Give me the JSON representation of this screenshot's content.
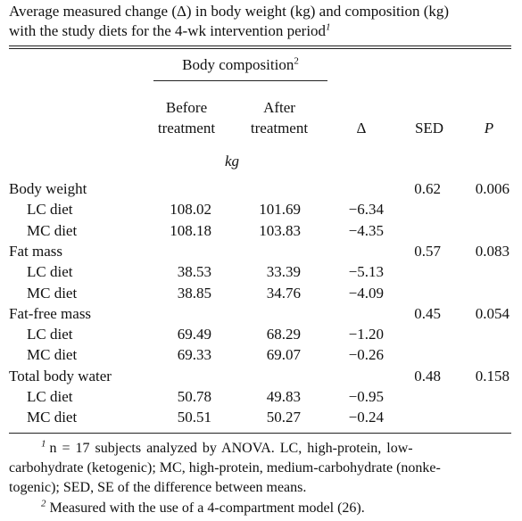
{
  "caption": {
    "line1": "Average measured change (Δ) in body weight (kg) and composition (kg)",
    "line2": "with the study diets for the 4-wk intervention period",
    "line2_sup": "1"
  },
  "header": {
    "group_label": "Body composition",
    "group_sup": "2",
    "before_line1": "Before",
    "before_line2": "treatment",
    "after_line1": "After",
    "after_line2": "treatment",
    "delta": "Δ",
    "sed": "SED",
    "p": "P",
    "unit": "kg"
  },
  "rows": [
    {
      "label": "Body weight",
      "sed": "0.62",
      "p": "0.006"
    },
    {
      "label": "LC diet",
      "before": "108.02",
      "after": "101.69",
      "delta": "−6.34"
    },
    {
      "label": "MC diet",
      "before": "108.18",
      "after": "103.83",
      "delta": "−4.35"
    },
    {
      "label": "Fat mass",
      "sed": "0.57",
      "p": "0.083"
    },
    {
      "label": "LC diet",
      "before": "38.53",
      "after": "33.39",
      "delta": "−5.13"
    },
    {
      "label": "MC diet",
      "before": "38.85",
      "after": "34.76",
      "delta": "−4.09"
    },
    {
      "label": "Fat-free mass",
      "sed": "0.45",
      "p": "0.054"
    },
    {
      "label": "LC diet",
      "before": "69.49",
      "after": "68.29",
      "delta": "−1.20"
    },
    {
      "label": "MC diet",
      "before": "69.33",
      "after": "69.07",
      "delta": "−0.26"
    },
    {
      "label": "Total body water",
      "sed": "0.48",
      "p": "0.158"
    },
    {
      "label": "LC diet",
      "before": "50.78",
      "after": "49.83",
      "delta": "−0.95"
    },
    {
      "label": "MC diet",
      "before": "50.51",
      "after": "50.27",
      "delta": "−0.24"
    }
  ],
  "footnotes": {
    "f1_sup": "1",
    "f1_line1": "n = 17 subjects analyzed by ANOVA. LC, high-protein, low-",
    "f1_line2": "carbohydrate (ketogenic); MC, high-protein, medium-carbohydrate (nonke-",
    "f1_line3": "togenic); SED, SE of the difference between means.",
    "f2_sup": "2",
    "f2_line1": "Measured with the use of a 4-compartment model (26)."
  }
}
